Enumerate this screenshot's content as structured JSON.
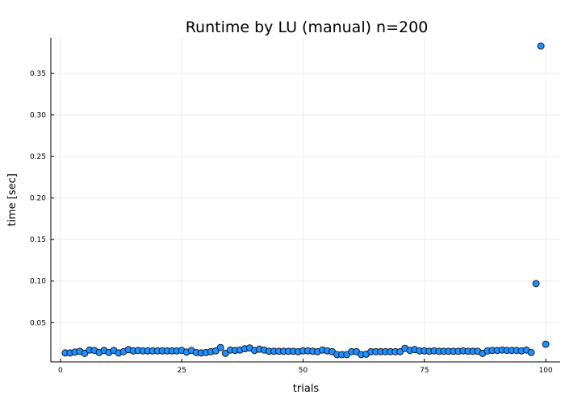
{
  "chart_data": {
    "type": "scatter",
    "title": "Runtime by LU (manual)  n=200",
    "xlabel": "trials",
    "ylabel": "time [sec]",
    "xlim": [
      -1.97,
      102.97
    ],
    "ylim": [
      0.0027,
      0.3928
    ],
    "xticks": [
      0,
      25,
      50,
      75,
      100
    ],
    "xtick_labels": [
      "0",
      "25",
      "50",
      "75",
      "100"
    ],
    "yticks": [
      0.05,
      0.1,
      0.15,
      0.2,
      0.25,
      0.3,
      0.35
    ],
    "ytick_labels": [
      "0.05",
      "0.10",
      "0.15",
      "0.20",
      "0.25",
      "0.30",
      "0.35"
    ],
    "grid": true,
    "legend": "none",
    "marker_color": "#1e90ff",
    "marker_edge_color": "#111111",
    "series": [
      {
        "x": [
          1,
          2,
          3,
          4,
          5,
          6,
          7,
          8,
          9,
          10,
          11,
          12,
          13,
          14,
          15,
          16,
          17,
          18,
          19,
          20,
          21,
          22,
          23,
          24,
          25,
          26,
          27,
          28,
          29,
          30,
          31,
          32,
          33,
          34,
          35,
          36,
          37,
          38,
          39,
          40,
          41,
          42,
          43,
          44,
          45,
          46,
          47,
          48,
          49,
          50,
          51,
          52,
          53,
          54,
          55,
          56,
          57,
          58,
          59,
          60,
          61,
          62,
          63,
          64,
          65,
          66,
          67,
          68,
          69,
          70,
          71,
          72,
          73,
          74,
          75,
          76,
          77,
          78,
          79,
          80,
          81,
          82,
          83,
          84,
          85,
          86,
          87,
          88,
          89,
          90,
          91,
          92,
          93,
          94,
          95,
          96,
          97,
          98,
          99,
          100
        ],
        "y": [
          0.0135,
          0.0135,
          0.0145,
          0.0155,
          0.013,
          0.017,
          0.0165,
          0.014,
          0.0165,
          0.014,
          0.0165,
          0.0135,
          0.015,
          0.0175,
          0.016,
          0.0165,
          0.016,
          0.016,
          0.016,
          0.016,
          0.016,
          0.016,
          0.016,
          0.016,
          0.0165,
          0.0145,
          0.0165,
          0.014,
          0.0135,
          0.014,
          0.015,
          0.016,
          0.02,
          0.013,
          0.017,
          0.0165,
          0.017,
          0.0185,
          0.0195,
          0.0165,
          0.018,
          0.017,
          0.0155,
          0.0155,
          0.0155,
          0.0155,
          0.0155,
          0.0155,
          0.015,
          0.016,
          0.016,
          0.0155,
          0.015,
          0.017,
          0.016,
          0.015,
          0.0115,
          0.0115,
          0.0115,
          0.015,
          0.015,
          0.0115,
          0.012,
          0.015,
          0.015,
          0.015,
          0.015,
          0.015,
          0.015,
          0.015,
          0.019,
          0.0165,
          0.0175,
          0.016,
          0.016,
          0.0155,
          0.016,
          0.0155,
          0.0155,
          0.0155,
          0.0155,
          0.0155,
          0.016,
          0.0155,
          0.0155,
          0.0155,
          0.013,
          0.016,
          0.0165,
          0.0165,
          0.017,
          0.0165,
          0.0165,
          0.0165,
          0.016,
          0.017,
          0.014,
          0.097,
          0.383,
          0.024
        ]
      }
    ]
  }
}
